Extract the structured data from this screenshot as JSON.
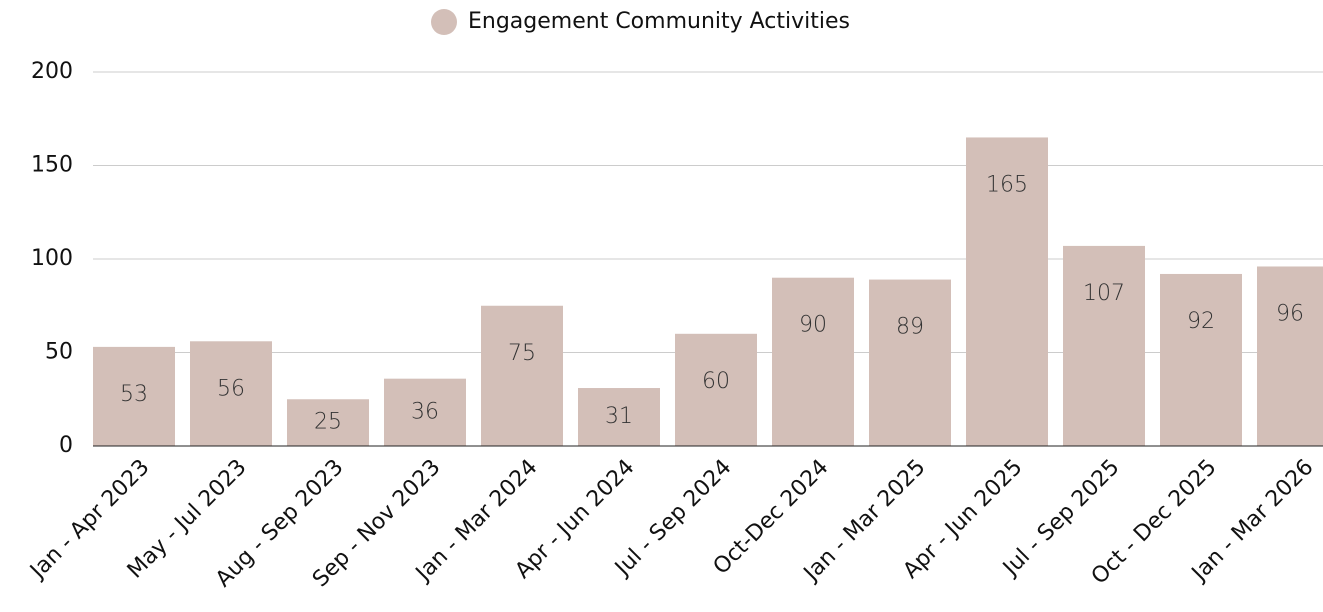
{
  "chart_data": {
    "type": "bar",
    "categories": [
      "Jan - Apr 2023",
      "May - Jul 2023",
      "Aug - Sep 2023",
      "Sep - Nov 2023",
      "Jan - Mar 2024",
      "Apr - Jun 2024",
      "Jul - Sep 2024",
      "Oct-Dec 2024",
      "Jan - Mar 2025",
      "Apr - Jun 2025",
      "Jul - Sep 2025",
      "Oct - Dec 2025",
      "Jan - Mar 2026"
    ],
    "series": [
      {
        "name": "Engagement Community Activities",
        "color": "#d3bfb8",
        "values": [
          53,
          56,
          25,
          36,
          75,
          31,
          60,
          90,
          89,
          165,
          107,
          92,
          96
        ]
      }
    ],
    "ylim": [
      0,
      200
    ],
    "yticks": [
      0,
      50,
      100,
      150,
      200
    ],
    "grid": true,
    "legend": "top"
  }
}
